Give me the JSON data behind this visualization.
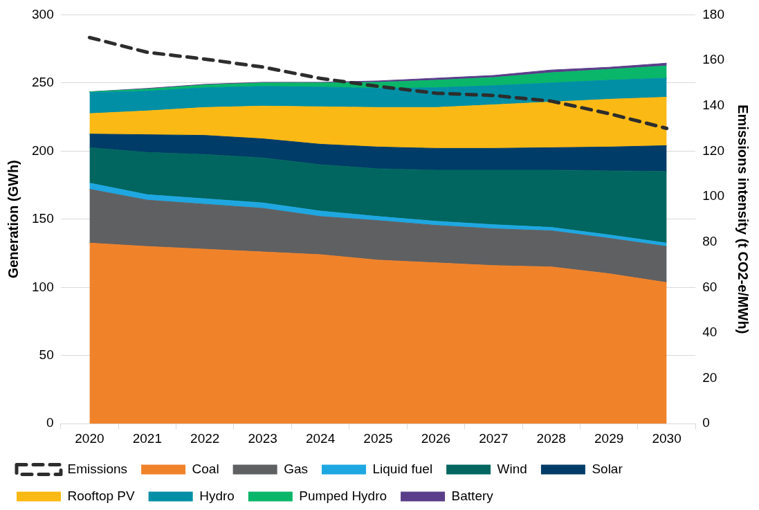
{
  "chart_data": {
    "type": "area",
    "stacked": true,
    "ylabel": "Generation (GWh)",
    "y2label": "Emissions intensity (t CO2-e/MWh)",
    "categories": [
      "2020",
      "2021",
      "2022",
      "2023",
      "2024",
      "2025",
      "2026",
      "2027",
      "2028",
      "2029",
      "2030"
    ],
    "ylim": [
      0,
      300
    ],
    "yticks": [
      0,
      50,
      100,
      150,
      200,
      250,
      300
    ],
    "y2lim": [
      0,
      180
    ],
    "y2ticks": [
      0,
      20,
      40,
      60,
      80,
      100,
      120,
      140,
      160,
      180
    ],
    "grid": "y",
    "legend": "bottom",
    "marker": "none",
    "series": [
      {
        "name": "Coal",
        "color": "#f0822a",
        "values": [
          132.5,
          130,
          128,
          126,
          124,
          120,
          118,
          116,
          115,
          110,
          103.5
        ]
      },
      {
        "name": "Gas",
        "color": "#5f6062",
        "values": [
          39.5,
          34,
          33,
          32,
          28,
          29,
          27.5,
          27,
          26.5,
          26,
          26.5
        ]
      },
      {
        "name": "Liquid fuel",
        "color": "#1ea7e1",
        "values": [
          4.5,
          4,
          4,
          4,
          4,
          3,
          3,
          3,
          2.5,
          2.5,
          2.5
        ]
      },
      {
        "name": "Wind",
        "color": "#00665f",
        "values": [
          26,
          31,
          32.5,
          33,
          34,
          35,
          37.5,
          40,
          42,
          47,
          52.5
        ]
      },
      {
        "name": "Solar",
        "color": "#003c68",
        "values": [
          10,
          13,
          14,
          14,
          15,
          16,
          16,
          16,
          16.5,
          17.5,
          19
        ]
      },
      {
        "name": "Rooftop PV",
        "color": "#fbb915",
        "values": [
          15,
          17.5,
          20.5,
          24,
          27.5,
          29,
          30,
          32,
          33.5,
          35,
          35.5
        ]
      },
      {
        "name": "Hydro",
        "color": "#008fa5",
        "values": [
          15.5,
          14.5,
          14.5,
          14.5,
          14.5,
          14,
          14.5,
          14,
          14,
          14,
          14
        ]
      },
      {
        "name": "Pumped Hydro",
        "color": "#0ab66a",
        "values": [
          0.5,
          1.5,
          2,
          2.5,
          3,
          4.5,
          5.5,
          6,
          7.5,
          8,
          9
        ]
      },
      {
        "name": "Battery",
        "color": "#5b3e8a",
        "values": [
          0,
          0.5,
          0.5,
          0.5,
          0.5,
          1,
          1.5,
          1.5,
          2,
          1.5,
          2
        ]
      },
      {
        "name": "Emissions",
        "type": "line",
        "axis": "y2",
        "line_style": "dashed",
        "color": "#2d2d2d",
        "values": [
          170,
          163.5,
          160.5,
          157,
          152,
          148.5,
          145.5,
          144.5,
          142,
          136.5,
          130
        ]
      }
    ]
  }
}
